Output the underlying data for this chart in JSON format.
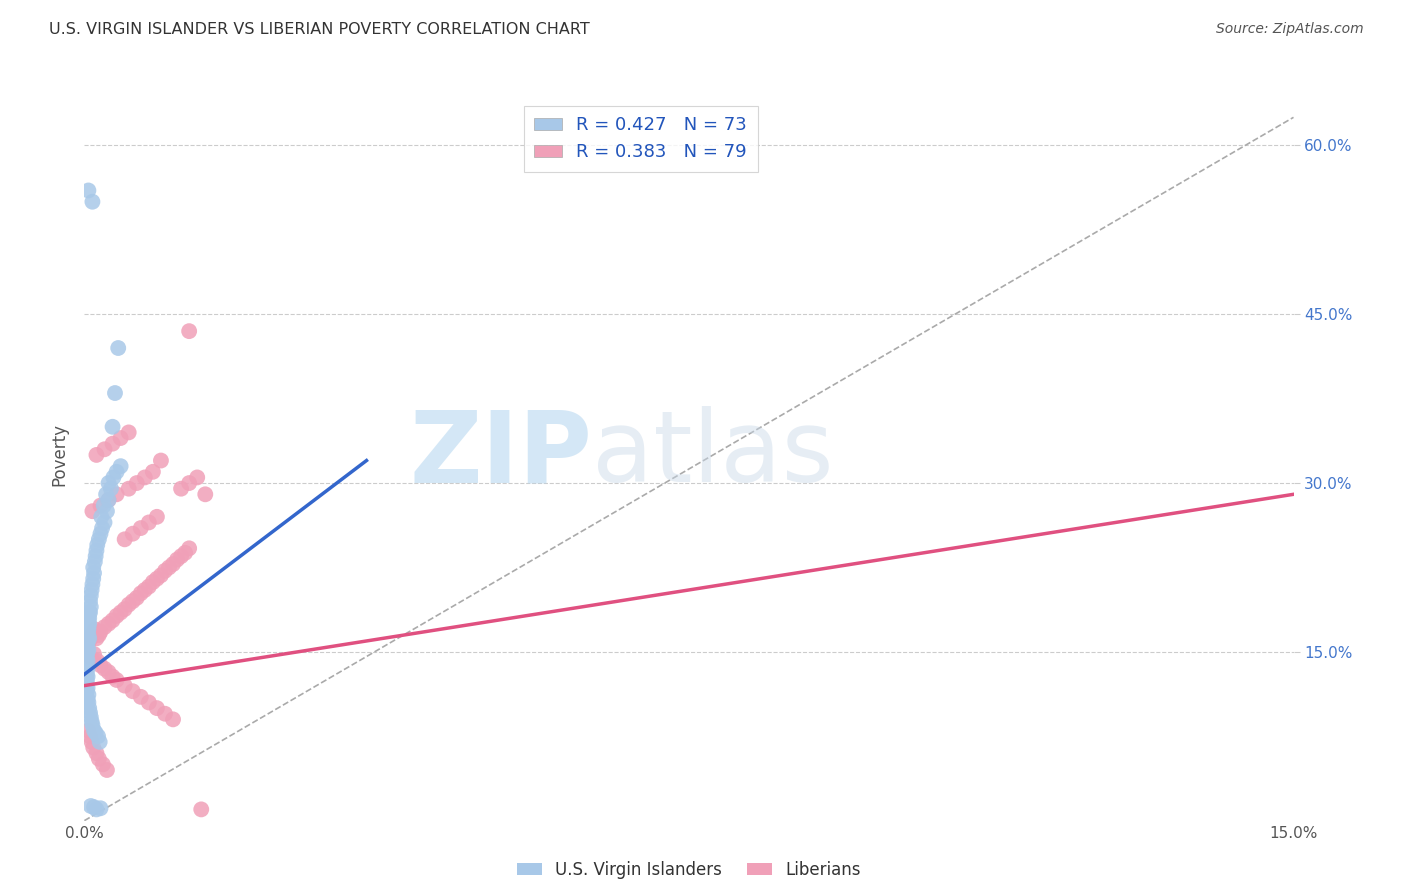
{
  "title": "U.S. VIRGIN ISLANDER VS LIBERIAN POVERTY CORRELATION CHART",
  "source": "Source: ZipAtlas.com",
  "ylabel": "Poverty",
  "xlim": [
    0.0,
    0.15
  ],
  "ylim": [
    0.0,
    0.65
  ],
  "background_color": "#ffffff",
  "plot_bg_color": "#ffffff",
  "grid_color": "#cccccc",
  "blue_dot_color": "#a8c8e8",
  "pink_dot_color": "#f0a0b8",
  "blue_line_color": "#3366cc",
  "pink_line_color": "#e05080",
  "diag_line_color": "#aaaaaa",
  "blue_line_x": [
    0.0,
    0.035
  ],
  "blue_line_y": [
    0.13,
    0.32
  ],
  "pink_line_x": [
    0.0,
    0.15
  ],
  "pink_line_y": [
    0.12,
    0.29
  ],
  "diag_line_x": [
    0.0,
    0.15
  ],
  "diag_line_y": [
    0.0,
    0.625
  ],
  "watermark_zip": "ZIP",
  "watermark_atlas": "atlas",
  "blue_dots_x": [
    0.0004,
    0.0003,
    0.0005,
    0.0004,
    0.0003,
    0.0004,
    0.0005,
    0.0003,
    0.0006,
    0.0004,
    0.0003,
    0.0005,
    0.0004,
    0.0003,
    0.0006,
    0.0004,
    0.0003,
    0.0005,
    0.0004,
    0.0003,
    0.0006,
    0.0005,
    0.0004,
    0.0003,
    0.0007,
    0.0005,
    0.0004,
    0.0008,
    0.0006,
    0.0005,
    0.0007,
    0.0006,
    0.0008,
    0.0007,
    0.0009,
    0.0008,
    0.001,
    0.0009,
    0.0011,
    0.001,
    0.0012,
    0.0011,
    0.0013,
    0.0014,
    0.0015,
    0.0012,
    0.0016,
    0.0014,
    0.0018,
    0.002,
    0.0017,
    0.0022,
    0.0019,
    0.0025,
    0.0021,
    0.0028,
    0.0024,
    0.003,
    0.0027,
    0.0033,
    0.003,
    0.0036,
    0.004,
    0.0045,
    0.0035,
    0.0038,
    0.0042,
    0.001,
    0.0015,
    0.002,
    0.0012,
    0.0008,
    0.0005
  ],
  "blue_dots_y": [
    0.16,
    0.155,
    0.165,
    0.15,
    0.145,
    0.158,
    0.152,
    0.148,
    0.162,
    0.142,
    0.138,
    0.17,
    0.135,
    0.13,
    0.175,
    0.128,
    0.125,
    0.172,
    0.168,
    0.122,
    0.18,
    0.178,
    0.118,
    0.115,
    0.185,
    0.112,
    0.108,
    0.19,
    0.185,
    0.105,
    0.195,
    0.1,
    0.2,
    0.096,
    0.205,
    0.092,
    0.21,
    0.088,
    0.215,
    0.085,
    0.22,
    0.225,
    0.23,
    0.235,
    0.24,
    0.08,
    0.245,
    0.078,
    0.25,
    0.255,
    0.075,
    0.26,
    0.07,
    0.265,
    0.27,
    0.275,
    0.28,
    0.285,
    0.29,
    0.295,
    0.3,
    0.305,
    0.31,
    0.315,
    0.35,
    0.38,
    0.42,
    0.55,
    0.01,
    0.011,
    0.012,
    0.013,
    0.56
  ],
  "pink_dots_x": [
    0.0003,
    0.0005,
    0.0008,
    0.001,
    0.0013,
    0.0015,
    0.0018,
    0.002,
    0.0025,
    0.003,
    0.0035,
    0.004,
    0.0045,
    0.005,
    0.0055,
    0.006,
    0.0065,
    0.007,
    0.0075,
    0.008,
    0.0085,
    0.009,
    0.0095,
    0.01,
    0.0105,
    0.011,
    0.0115,
    0.012,
    0.0125,
    0.013,
    0.0008,
    0.0012,
    0.0016,
    0.002,
    0.0025,
    0.003,
    0.0035,
    0.004,
    0.005,
    0.006,
    0.007,
    0.008,
    0.009,
    0.01,
    0.011,
    0.005,
    0.006,
    0.007,
    0.008,
    0.009,
    0.001,
    0.002,
    0.003,
    0.004,
    0.0055,
    0.0065,
    0.0075,
    0.0085,
    0.0095,
    0.0015,
    0.0025,
    0.0035,
    0.0045,
    0.0055,
    0.012,
    0.013,
    0.014,
    0.015,
    0.0005,
    0.0007,
    0.0009,
    0.0011,
    0.0015,
    0.0018,
    0.0023,
    0.0028,
    0.013,
    0.0145
  ],
  "pink_dots_y": [
    0.155,
    0.158,
    0.162,
    0.166,
    0.17,
    0.162,
    0.165,
    0.168,
    0.172,
    0.175,
    0.178,
    0.182,
    0.185,
    0.188,
    0.192,
    0.195,
    0.198,
    0.202,
    0.205,
    0.208,
    0.212,
    0.215,
    0.218,
    0.222,
    0.225,
    0.228,
    0.232,
    0.235,
    0.238,
    0.242,
    0.145,
    0.148,
    0.142,
    0.138,
    0.135,
    0.132,
    0.128,
    0.125,
    0.12,
    0.115,
    0.11,
    0.105,
    0.1,
    0.095,
    0.09,
    0.25,
    0.255,
    0.26,
    0.265,
    0.27,
    0.275,
    0.28,
    0.285,
    0.29,
    0.295,
    0.3,
    0.305,
    0.31,
    0.32,
    0.325,
    0.33,
    0.335,
    0.34,
    0.345,
    0.295,
    0.3,
    0.305,
    0.29,
    0.08,
    0.075,
    0.07,
    0.065,
    0.06,
    0.055,
    0.05,
    0.045,
    0.435,
    0.01
  ]
}
